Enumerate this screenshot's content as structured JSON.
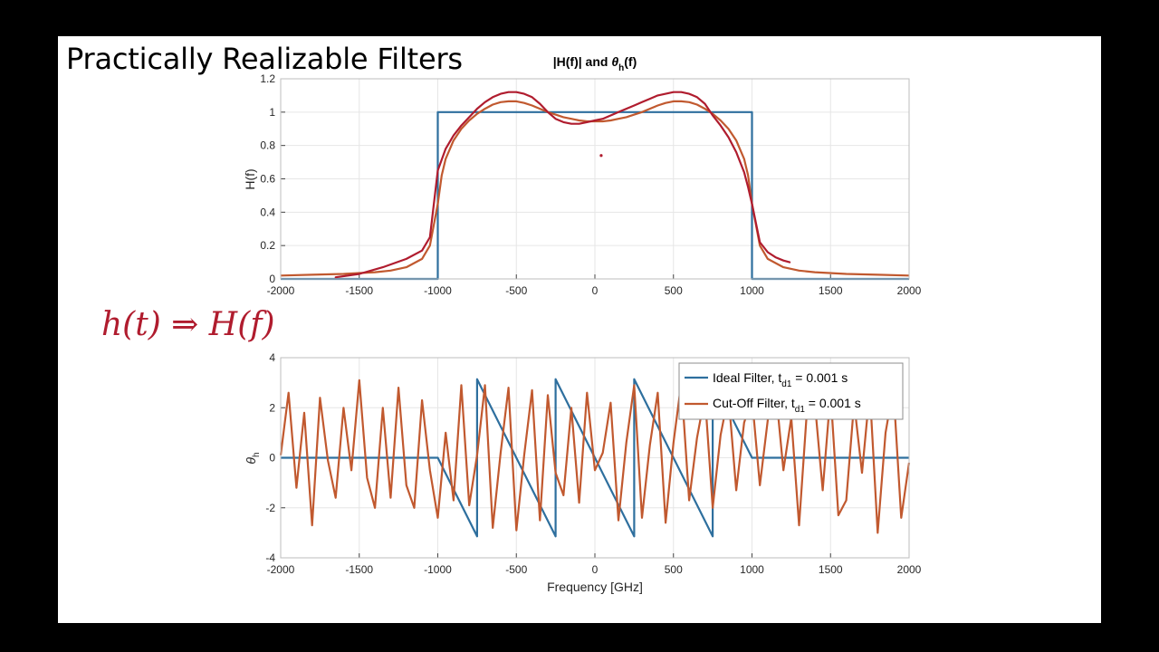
{
  "slide": {
    "title": "Practically Realizable Filters",
    "annotation": "h(t) ⇒ H(f)"
  },
  "colors": {
    "ideal": "#2e6f9e",
    "cutoff": "#c1592f",
    "ink": "#b01c2e"
  },
  "chart_data": [
    {
      "id": "magnitude",
      "type": "line",
      "title": "|H(f)| and θh(f)",
      "title_parts": [
        "|H(f)| and ",
        "θ",
        "h",
        "(f)"
      ],
      "xlabel": "",
      "ylabel": "H(f)",
      "xlim": [
        -2000,
        2000
      ],
      "ylim": [
        0,
        1.2
      ],
      "xticks": [
        -2000,
        -1500,
        -1000,
        -500,
        0,
        500,
        1000,
        1500,
        2000
      ],
      "yticks": [
        0,
        0.2,
        0.4,
        0.6,
        0.8,
        1,
        1.2
      ],
      "ytick_labels": [
        "0",
        "0.2",
        "0.4",
        "0.6",
        "0.8",
        "1",
        "1.2"
      ],
      "grid": true,
      "series": [
        {
          "key": "ideal",
          "x": [
            -2000,
            -1000,
            -1000,
            1000,
            1000,
            2000
          ],
          "y": [
            0,
            0,
            1,
            1,
            0,
            0
          ]
        },
        {
          "key": "cutoff",
          "x": [
            -2000,
            -1800,
            -1600,
            -1400,
            -1300,
            -1200,
            -1100,
            -1050,
            -1000,
            -975,
            -950,
            -900,
            -850,
            -800,
            -750,
            -700,
            -650,
            -600,
            -550,
            -500,
            -450,
            -400,
            -350,
            -300,
            -250,
            -200,
            -150,
            -100,
            -50,
            0,
            50,
            100,
            150,
            200,
            250,
            300,
            350,
            400,
            450,
            500,
            550,
            600,
            650,
            700,
            750,
            800,
            850,
            900,
            950,
            975,
            1000,
            1050,
            1100,
            1200,
            1300,
            1400,
            1600,
            1800,
            2000
          ],
          "y": [
            0.02,
            0.025,
            0.03,
            0.04,
            0.05,
            0.07,
            0.12,
            0.2,
            0.45,
            0.62,
            0.72,
            0.83,
            0.9,
            0.95,
            0.99,
            1.02,
            1.045,
            1.06,
            1.065,
            1.065,
            1.055,
            1.04,
            1.02,
            1.0,
            0.985,
            0.97,
            0.96,
            0.95,
            0.945,
            0.945,
            0.945,
            0.95,
            0.96,
            0.97,
            0.985,
            1.0,
            1.02,
            1.04,
            1.055,
            1.065,
            1.065,
            1.06,
            1.045,
            1.02,
            0.99,
            0.95,
            0.9,
            0.83,
            0.72,
            0.62,
            0.45,
            0.2,
            0.12,
            0.07,
            0.05,
            0.04,
            0.03,
            0.025,
            0.02
          ]
        }
      ],
      "ink_curve": {
        "x": [
          -1650,
          -1500,
          -1350,
          -1200,
          -1100,
          -1050,
          -1000,
          -950,
          -900,
          -850,
          -800,
          -750,
          -700,
          -650,
          -600,
          -550,
          -500,
          -450,
          -400,
          -350,
          -300,
          -250,
          -200,
          -150,
          -100,
          -50,
          0,
          50,
          100,
          150,
          200,
          250,
          300,
          350,
          400,
          450,
          500,
          550,
          600,
          650,
          700,
          750,
          800,
          850,
          900,
          950,
          975,
          1000,
          1050,
          1100,
          1150,
          1200,
          1240
        ],
        "y": [
          0.01,
          0.03,
          0.07,
          0.12,
          0.17,
          0.25,
          0.65,
          0.78,
          0.86,
          0.92,
          0.97,
          1.02,
          1.06,
          1.09,
          1.11,
          1.12,
          1.12,
          1.11,
          1.09,
          1.05,
          1.0,
          0.96,
          0.94,
          0.93,
          0.93,
          0.94,
          0.95,
          0.96,
          0.98,
          1.0,
          1.02,
          1.04,
          1.06,
          1.08,
          1.1,
          1.11,
          1.12,
          1.12,
          1.11,
          1.09,
          1.05,
          0.98,
          0.92,
          0.85,
          0.76,
          0.64,
          0.55,
          0.45,
          0.22,
          0.16,
          0.13,
          0.11,
          0.1
        ]
      },
      "ink_dot": {
        "x": 40,
        "y": 0.74
      }
    },
    {
      "id": "phase",
      "type": "line",
      "title": "",
      "xlabel": "Frequency [GHz]",
      "ylabel": "θh",
      "ylabel_parts": [
        "θ",
        "h"
      ],
      "xlim": [
        -2000,
        2000
      ],
      "ylim": [
        -4,
        4
      ],
      "xticks": [
        -2000,
        -1500,
        -1000,
        -500,
        0,
        500,
        1000,
        1500,
        2000
      ],
      "yticks": [
        -4,
        -2,
        0,
        2,
        4
      ],
      "ytick_labels": [
        "-4",
        "-2",
        "0",
        "2",
        "4"
      ],
      "grid": true,
      "legend": {
        "placement": "top-right",
        "entries": [
          {
            "key": "ideal",
            "parts": [
              "Ideal Filter, t",
              "d1",
              " = 0.001 s"
            ]
          },
          {
            "key": "cutoff",
            "parts": [
              "Cut-Off Filter, t",
              "d1",
              " = 0.001 s"
            ]
          }
        ]
      },
      "series": [
        {
          "key": "ideal",
          "x": [
            -2000,
            -1000,
            -750,
            -750,
            -250,
            -250,
            250,
            250,
            750,
            750,
            1000,
            2000
          ],
          "y": [
            0,
            0,
            -3.1416,
            3.1416,
            -3.1416,
            3.1416,
            -3.1416,
            3.1416,
            -3.1416,
            3.1416,
            0,
            0
          ]
        },
        {
          "key": "cutoff",
          "x": [
            -2000,
            -1950,
            -1900,
            -1850,
            -1800,
            -1750,
            -1700,
            -1650,
            -1600,
            -1550,
            -1500,
            -1450,
            -1400,
            -1350,
            -1300,
            -1250,
            -1200,
            -1150,
            -1100,
            -1050,
            -1000,
            -950,
            -900,
            -850,
            -800,
            -750,
            -700,
            -650,
            -600,
            -550,
            -500,
            -450,
            -400,
            -350,
            -300,
            -250,
            -200,
            -150,
            -100,
            -50,
            0,
            50,
            100,
            150,
            200,
            250,
            300,
            350,
            400,
            450,
            500,
            550,
            600,
            650,
            700,
            750,
            800,
            850,
            900,
            950,
            1000,
            1050,
            1100,
            1150,
            1200,
            1250,
            1300,
            1350,
            1400,
            1450,
            1500,
            1550,
            1600,
            1650,
            1700,
            1750,
            1800,
            1850,
            1900,
            1950,
            2000
          ],
          "y": [
            0.1,
            2.6,
            -1.2,
            1.8,
            -2.7,
            2.4,
            -0.1,
            -1.6,
            2.0,
            -0.5,
            3.1,
            -0.8,
            -2.0,
            2.0,
            -1.6,
            2.8,
            -1.1,
            -2.0,
            2.3,
            -0.5,
            -2.4,
            1.0,
            -1.7,
            2.9,
            -1.9,
            0.1,
            2.9,
            -2.8,
            0.2,
            2.8,
            -2.9,
            0.1,
            2.7,
            -2.5,
            2.5,
            -0.6,
            -1.5,
            2.0,
            -1.8,
            2.6,
            -0.5,
            0.2,
            2.2,
            -2.5,
            0.6,
            2.9,
            -2.4,
            0.5,
            2.6,
            -2.6,
            0.6,
            3.0,
            -1.7,
            0.8,
            2.5,
            -2.0,
            0.9,
            2.5,
            -1.3,
            1.4,
            2.4,
            -1.1,
            1.5,
            2.8,
            -0.5,
            1.6,
            -2.7,
            1.9,
            2.2,
            -1.3,
            2.6,
            -2.3,
            -1.7,
            2.2,
            -0.6,
            2.7,
            -3.0,
            1.0,
            2.8,
            -2.4,
            -0.2
          ]
        }
      ]
    }
  ]
}
